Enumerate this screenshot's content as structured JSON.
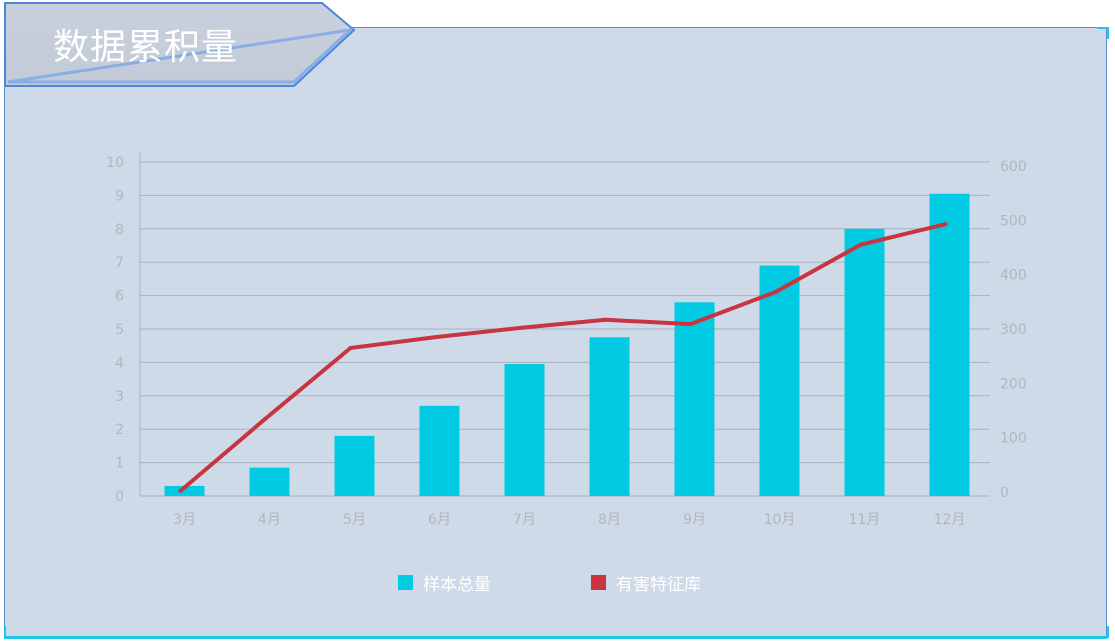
{
  "title": "数据累积量",
  "colors": {
    "bar": "#00cbe3",
    "line": "#c8343f",
    "panel": "#cfdae9",
    "axis_text": "#b0b6c0",
    "grid": "#a6b1c2"
  },
  "chart_data": {
    "type": "bar",
    "categories": [
      "3月",
      "4月",
      "5月",
      "6月",
      "7月",
      "8月",
      "9月",
      "10月",
      "11月",
      "12月"
    ],
    "series": [
      {
        "name": "样本总量",
        "type": "bar",
        "axis": "left",
        "values": [
          0.3,
          0.85,
          1.8,
          2.7,
          3.95,
          4.75,
          5.8,
          6.9,
          8.0,
          9.05
        ]
      },
      {
        "name": "有害特征库",
        "type": "line",
        "axis": "right",
        "values": [
          2,
          135,
          265,
          285,
          302,
          317,
          309,
          368,
          455,
          493
        ]
      }
    ],
    "left_axis": {
      "min": 0,
      "max": 10,
      "ticks": [
        0,
        1,
        2,
        3,
        4,
        5,
        6,
        7,
        8,
        9,
        10
      ]
    },
    "right_axis": {
      "min": 0,
      "max": 600,
      "ticks": [
        0,
        100,
        200,
        300,
        400,
        500,
        600
      ]
    },
    "grid": true,
    "legend_position": "bottom-center"
  },
  "legend": [
    {
      "label": "样本总量"
    },
    {
      "label": "有害特征库"
    }
  ]
}
